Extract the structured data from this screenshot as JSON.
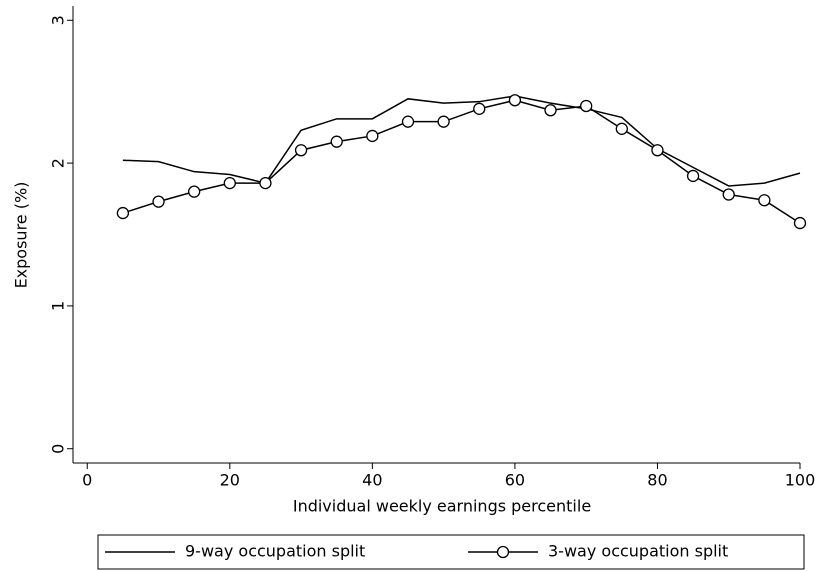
{
  "chart_data": {
    "type": "line",
    "x": [
      5,
      10,
      15,
      20,
      25,
      30,
      35,
      40,
      45,
      50,
      55,
      60,
      65,
      70,
      75,
      80,
      85,
      90,
      95,
      100
    ],
    "series": [
      {
        "name": "9-way occupation split",
        "color": "#000000",
        "markers": false,
        "values": [
          2.02,
          2.01,
          1.94,
          1.92,
          1.86,
          2.23,
          2.31,
          2.31,
          2.45,
          2.42,
          2.43,
          2.47,
          2.42,
          2.38,
          2.32,
          2.1,
          1.97,
          1.84,
          1.86,
          1.93
        ]
      },
      {
        "name": "3-way occupation split",
        "color": "#000000",
        "markers": true,
        "values": [
          1.65,
          1.73,
          1.8,
          1.86,
          1.86,
          2.09,
          2.15,
          2.19,
          2.29,
          2.29,
          2.38,
          2.44,
          2.37,
          2.4,
          2.24,
          2.09,
          1.91,
          1.78,
          1.74,
          1.58
        ]
      }
    ],
    "x_label": "Individual weekly earnings percentile",
    "y_label": "Exposure (%)",
    "xlim": [
      -2,
      100
    ],
    "xticks": [
      0,
      20,
      40,
      60,
      80,
      100
    ],
    "ylim": [
      -0.1,
      3.1
    ],
    "yticks": [
      0,
      1,
      2,
      3
    ],
    "legend": "bottom"
  }
}
